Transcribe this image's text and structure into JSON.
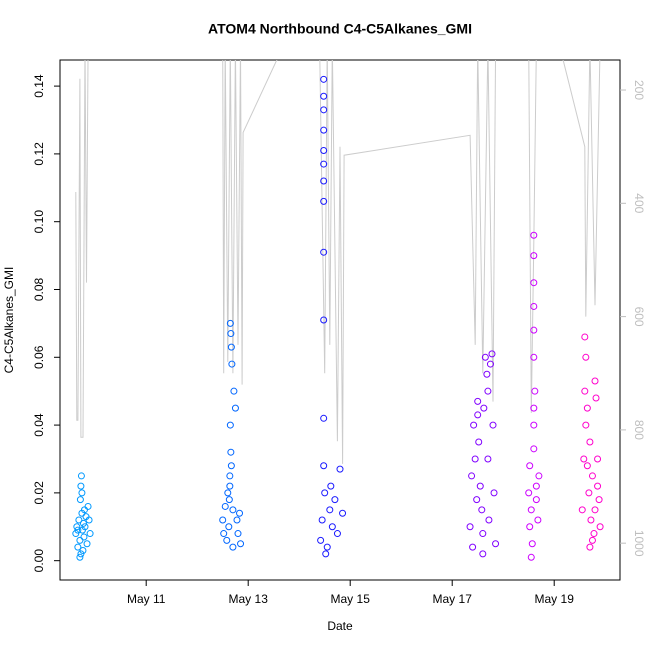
{
  "chart_data": {
    "type": "scatter",
    "title": "ATOM4 Northbound C4-C5Alkanes_GMI",
    "x_label": "Date",
    "y_label": "C4-C5Alkanes_GMI",
    "xlim": [
      9.31,
      20.29
    ],
    "xticks": [
      {
        "value": 11,
        "label": "May 11"
      },
      {
        "value": 13,
        "label": "May 13"
      },
      {
        "value": 15,
        "label": "May 15"
      },
      {
        "value": 17,
        "label": "May 17"
      },
      {
        "value": 19,
        "label": "May 19"
      }
    ],
    "ylim": [
      -0.0057,
      0.1477
    ],
    "yticks": [
      {
        "value": 0,
        "label": "0.00"
      },
      0.02,
      0.04,
      0.06,
      0.08,
      {
        "value": 0.1,
        "label": "0.10"
      },
      0.12,
      0.14
    ],
    "y2lim": [
      1065,
      147
    ],
    "y2ticks": [
      200,
      400,
      600,
      800,
      1000
    ],
    "y2_color": "#bebebe",
    "series": [
      {
        "color": "#0099ff",
        "x": [
          9.62,
          9.64,
          9.66,
          9.68,
          9.7,
          9.71,
          9.72,
          9.73,
          9.74,
          9.75,
          9.76,
          9.77,
          9.78,
          9.79,
          9.8,
          9.82,
          9.84,
          9.86,
          9.88,
          9.9,
          9.72,
          9.74,
          9.66,
          9.7
        ],
        "values": [
          0.008,
          0.01,
          0.004,
          0.012,
          0.006,
          0.018,
          0.022,
          0.025,
          0.014,
          0.009,
          0.003,
          0.011,
          0.007,
          0.015,
          0.01,
          0.013,
          0.005,
          0.016,
          0.012,
          0.008,
          0.002,
          0.02,
          0.009,
          0.001
        ]
      },
      {
        "color": "#0066ff",
        "x": [
          12.5,
          12.52,
          12.55,
          12.58,
          12.6,
          12.62,
          12.64,
          12.65,
          12.66,
          12.67,
          12.68,
          12.7,
          12.72,
          12.75,
          12.78,
          12.8,
          12.83,
          12.85,
          12.65,
          12.66,
          12.64,
          12.67,
          12.63,
          12.7
        ],
        "values": [
          0.012,
          0.008,
          0.016,
          0.006,
          0.02,
          0.01,
          0.022,
          0.07,
          0.067,
          0.063,
          0.058,
          0.015,
          0.05,
          0.045,
          0.012,
          0.008,
          0.014,
          0.005,
          0.04,
          0.032,
          0.025,
          0.028,
          0.018,
          0.004
        ]
      },
      {
        "color": "#1a1aff",
        "x": [
          14.48,
          14.48,
          14.48,
          14.48,
          14.48,
          14.48,
          14.48,
          14.48,
          14.48,
          14.48,
          14.48,
          14.48,
          14.42,
          14.45,
          14.5,
          14.55,
          14.6,
          14.65,
          14.7,
          14.75,
          14.8,
          14.85,
          14.52,
          14.62
        ],
        "values": [
          0.142,
          0.137,
          0.133,
          0.127,
          0.121,
          0.117,
          0.112,
          0.106,
          0.091,
          0.071,
          0.042,
          0.028,
          0.006,
          0.012,
          0.02,
          0.004,
          0.015,
          0.01,
          0.018,
          0.008,
          0.027,
          0.014,
          0.002,
          0.022
        ]
      },
      {
        "color": "#8000ff",
        "x": [
          17.35,
          17.38,
          17.42,
          17.45,
          17.48,
          17.5,
          17.52,
          17.55,
          17.58,
          17.6,
          17.62,
          17.65,
          17.68,
          17.7,
          17.72,
          17.75,
          17.78,
          17.8,
          17.82,
          17.85,
          17.4,
          17.6,
          17.7,
          17.5
        ],
        "values": [
          0.01,
          0.025,
          0.04,
          0.03,
          0.018,
          0.047,
          0.035,
          0.022,
          0.015,
          0.008,
          0.045,
          0.06,
          0.055,
          0.03,
          0.012,
          0.058,
          0.061,
          0.04,
          0.02,
          0.005,
          0.004,
          0.002,
          0.05,
          0.043
        ]
      },
      {
        "color": "#cc00ff",
        "x": [
          18.5,
          18.52,
          18.55,
          18.57,
          18.6,
          18.6,
          18.6,
          18.6,
          18.6,
          18.6,
          18.62,
          18.65,
          18.68,
          18.7,
          18.55,
          18.6,
          18.6,
          18.6,
          18.52,
          18.65
        ],
        "values": [
          0.02,
          0.028,
          0.015,
          0.005,
          0.096,
          0.09,
          0.082,
          0.075,
          0.068,
          0.06,
          0.05,
          0.022,
          0.012,
          0.025,
          0.001,
          0.04,
          0.033,
          0.045,
          0.01,
          0.018
        ]
      },
      {
        "color": "#ff00cc",
        "x": [
          19.55,
          19.58,
          19.6,
          19.62,
          19.65,
          19.68,
          19.7,
          19.72,
          19.75,
          19.78,
          19.8,
          19.82,
          19.85,
          19.88,
          19.9,
          19.6,
          19.62,
          19.65,
          19.75,
          19.8,
          19.85,
          19.7
        ],
        "values": [
          0.015,
          0.03,
          0.066,
          0.06,
          0.045,
          0.02,
          0.035,
          0.012,
          0.025,
          0.008,
          0.053,
          0.048,
          0.03,
          0.018,
          0.01,
          0.05,
          0.04,
          0.028,
          0.006,
          0.015,
          0.022,
          0.004
        ]
      },
      {
        "type": "line",
        "axis": "y2",
        "color": "#cccccc",
        "x": [
          9.62,
          9.64,
          9.66,
          9.7,
          9.72,
          9.76,
          9.8,
          9.83,
          9.86,
          9.9,
          null,
          12.5,
          12.52,
          12.55,
          12.6,
          12.65,
          12.7,
          12.75,
          12.8,
          12.85,
          12.88,
          12.9,
          13.7,
          null,
          14.4,
          14.5,
          14.55,
          14.6,
          14.65,
          14.75,
          14.8,
          14.85,
          14.88,
          17.35,
          17.45,
          17.5,
          17.6,
          17.7,
          17.8,
          17.85,
          null,
          18.5,
          18.55,
          18.6,
          18.65,
          null,
          19.1,
          19.6,
          19.62,
          19.7,
          19.8,
          19.9
        ],
        "values": [
          380,
          783,
          783,
          180,
          813,
          813,
          120,
          540,
          120,
          120,
          null,
          120,
          700,
          120,
          680,
          120,
          700,
          120,
          650,
          120,
          720,
          275,
          120,
          null,
          120,
          700,
          120,
          650,
          120,
          820,
          300,
          860,
          315,
          280,
          650,
          120,
          700,
          120,
          750,
          120,
          null,
          120,
          770,
          470,
          120,
          null,
          120,
          300,
          600,
          120,
          580,
          120
        ]
      }
    ]
  }
}
